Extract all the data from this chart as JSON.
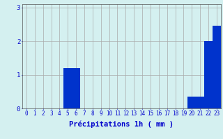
{
  "hours": [
    0,
    1,
    2,
    3,
    4,
    5,
    6,
    7,
    8,
    9,
    10,
    11,
    12,
    13,
    14,
    15,
    16,
    17,
    18,
    19,
    20,
    21,
    22,
    23
  ],
  "values": [
    0,
    0,
    0,
    0,
    0,
    1.2,
    1.2,
    0,
    0,
    0,
    0,
    0,
    0,
    0,
    0,
    0,
    0,
    0,
    0,
    0,
    0.35,
    0.35,
    2.0,
    2.45
  ],
  "bar_color": "#0033cc",
  "background_color": "#d4f0f0",
  "grid_color": "#aaaaaa",
  "axis_color": "#555555",
  "text_color": "#0000cc",
  "xlabel": "Précipitations 1h ( mm )",
  "ylim": [
    0,
    3.1
  ],
  "yticks": [
    0,
    1,
    2,
    3
  ],
  "tick_fontsize": 5.5,
  "label_fontsize": 7.5
}
